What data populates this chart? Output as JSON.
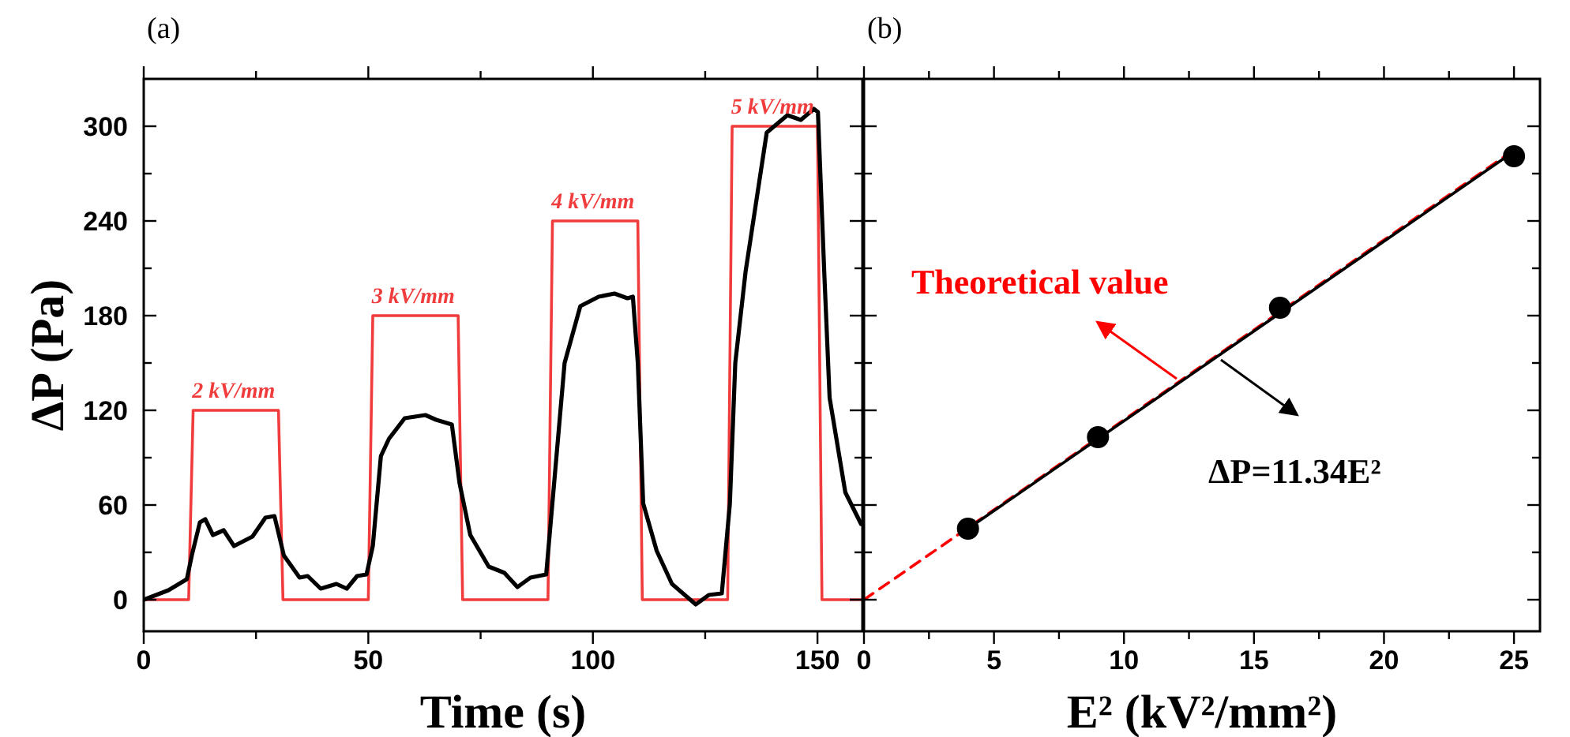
{
  "chart_data": [
    {
      "type": "line",
      "xlabel": "Time (s)",
      "ylabel": "ΔP (Pa)",
      "xlim": [
        0,
        160
      ],
      "ylim": [
        -20,
        330
      ],
      "xticks": [
        0,
        {
          "value": 25,
          "label": null
        },
        50,
        {
          "value": 75,
          "label": null
        },
        100,
        {
          "value": 125,
          "label": null
        },
        150
      ],
      "yticks": [
        0,
        {
          "value": 30,
          "label": null
        },
        60,
        {
          "value": 90,
          "label": null
        },
        120,
        {
          "value": 150,
          "label": null
        },
        180,
        {
          "value": 210,
          "label": null
        },
        240,
        {
          "value": 270,
          "label": null
        },
        300
      ],
      "grid": false,
      "series": [
        {
          "color": "#f03c3c",
          "line_style": "solid",
          "marker": "none",
          "x": [
            0,
            10,
            11,
            30,
            31,
            50,
            51,
            70,
            71,
            90,
            91,
            110,
            111,
            130,
            131,
            150,
            151,
            160
          ],
          "values": [
            0,
            0,
            120,
            120,
            0,
            0,
            180,
            180,
            0,
            0,
            240,
            240,
            0,
            0,
            300,
            300,
            0,
            0
          ]
        },
        {
          "color": "#000000",
          "line_style": "solid",
          "marker": "none",
          "x": [
            0,
            5.5,
            9.6,
            10.7,
            12.5,
            13.7,
            15.4,
            17.8,
            20.1,
            24.2,
            27.1,
            29.1,
            31.2,
            34.7,
            36.5,
            39.4,
            42.9,
            45.2,
            47.5,
            49.6,
            51,
            52.8,
            54.6,
            58.1,
            62.7,
            65.1,
            68.6,
            70.3,
            72.7,
            76.8,
            80.3,
            83.2,
            86.1,
            89.6,
            93.7,
            97.2,
            101.3,
            104.8,
            107.7,
            108.9,
            110,
            111.2,
            114.2,
            117.6,
            122.9,
            125.8,
            128.7,
            130.5,
            131.7,
            134,
            138.7,
            143.3,
            146.3,
            149.2,
            150.1,
            151.5,
            152.7,
            156.2,
            159.7
          ],
          "values": [
            0,
            6,
            13,
            28,
            49,
            51,
            41,
            44,
            34,
            40,
            52,
            53,
            28,
            14,
            15,
            7,
            10,
            7,
            15,
            16,
            34,
            91,
            102,
            115,
            117,
            114,
            111,
            74,
            41,
            21,
            17,
            8,
            14,
            16,
            150,
            186,
            192,
            194,
            191,
            192,
            150,
            61,
            31,
            10,
            -3,
            3,
            4,
            61,
            150,
            208,
            296,
            307,
            304,
            311,
            309,
            208,
            128,
            68,
            48
          ]
        }
      ],
      "annotations": [
        "(a)",
        {
          "text": "2 kV/mm",
          "x": 20,
          "y": 120
        },
        {
          "text": "3 kV/mm",
          "x": 60,
          "y": 180
        },
        {
          "text": "4 kV/mm",
          "x": 100,
          "y": 240
        },
        {
          "text": "5 kV/mm",
          "x": 140,
          "y": 300
        }
      ]
    },
    {
      "type": "line",
      "xlabel": "E² (kV²/mm²)",
      "xlim": [
        0,
        26
      ],
      "ylim": [
        -20,
        330
      ],
      "xticks": [
        0,
        {
          "value": 2.5,
          "label": null
        },
        5,
        {
          "value": 7.5,
          "label": null
        },
        10,
        {
          "value": 12.5,
          "label": null
        },
        15,
        {
          "value": 17.5,
          "label": null
        },
        20,
        {
          "value": 22.5,
          "label": null
        },
        25
      ],
      "yticks": [
        0,
        {
          "value": 30,
          "label": null
        },
        60,
        {
          "value": 90,
          "label": null
        },
        120,
        {
          "value": 150,
          "label": null
        },
        180,
        {
          "value": 210,
          "label": null
        },
        240,
        {
          "value": 270,
          "label": null
        },
        300
      ],
      "tick_labels": "x",
      "grid": false,
      "series": [
        {
          "name": "Theoretical value",
          "color": "#ff0000",
          "line_style": "dashed",
          "marker": "none",
          "x": [
            0,
            25
          ],
          "values": [
            0,
            285
          ]
        },
        {
          "name": "ΔP=11.34E²",
          "color": "#000000",
          "line_style": "solid",
          "marker": "none",
          "x": [
            4,
            25
          ],
          "values": [
            45,
            284
          ]
        },
        {
          "type": "scatter",
          "color": "#000000",
          "marker": "circle",
          "x": [
            4,
            9,
            16,
            25
          ],
          "values": [
            45,
            103,
            185,
            281
          ]
        }
      ],
      "annotations": [
        "(b)"
      ]
    }
  ]
}
